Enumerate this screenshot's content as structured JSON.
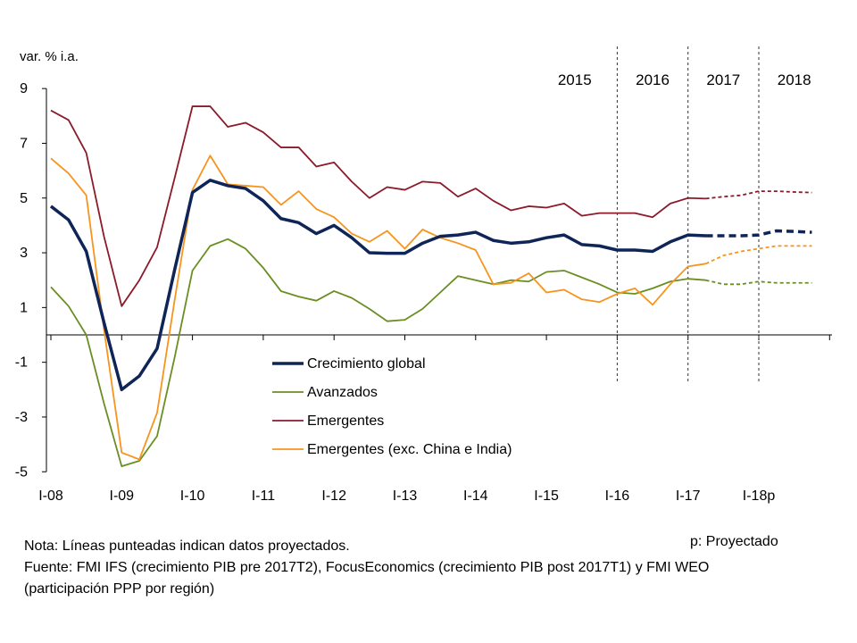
{
  "chart_data": {
    "type": "line",
    "ylabel": "var. % i.a.",
    "ylim": [
      -5,
      9
    ],
    "yticks": [
      9,
      7,
      5,
      3,
      1,
      -1,
      -3,
      -5
    ],
    "x_start": 2008.0,
    "x_step": 0.25,
    "x_ticks": [
      {
        "label": "I-08",
        "year": 2008
      },
      {
        "label": "I-09",
        "year": 2009
      },
      {
        "label": "I-10",
        "year": 2010
      },
      {
        "label": "I-11",
        "year": 2011
      },
      {
        "label": "I-12",
        "year": 2012
      },
      {
        "label": "I-13",
        "year": 2013
      },
      {
        "label": "I-14",
        "year": 2014
      },
      {
        "label": "I-15",
        "year": 2015
      },
      {
        "label": "I-16",
        "year": 2016
      },
      {
        "label": "I-17",
        "year": 2017
      },
      {
        "label": "I-18p",
        "year": 2018
      }
    ],
    "period_labels": [
      {
        "label": "2015",
        "year": 2015.5
      },
      {
        "label": "2016",
        "year": 2016.5
      },
      {
        "label": "2017",
        "year": 2017.5
      },
      {
        "label": "2018",
        "year": 2018.5
      }
    ],
    "dividers": [
      2016.0,
      2017.0,
      2018.0
    ],
    "projection_start_index": 37,
    "series": [
      {
        "name": "Crecimiento global",
        "color": "#0f2557",
        "width": 3.5,
        "values": [
          4.7,
          4.2,
          3.05,
          0.45,
          -2.0,
          -1.5,
          -0.5,
          2.4,
          5.2,
          5.65,
          5.45,
          5.35,
          4.9,
          4.25,
          4.1,
          3.7,
          4.0,
          3.55,
          3.0,
          2.98,
          2.98,
          3.35,
          3.6,
          3.65,
          3.75,
          3.45,
          3.35,
          3.4,
          3.55,
          3.65,
          3.3,
          3.25,
          3.1,
          3.1,
          3.05,
          3.4,
          3.65,
          3.62,
          3.62,
          3.62,
          3.65,
          3.8,
          3.78,
          3.75
        ]
      },
      {
        "name": "Avanzados",
        "color": "#6b8e23",
        "width": 1.8,
        "values": [
          1.75,
          1.05,
          0.0,
          -2.5,
          -4.8,
          -4.6,
          -3.7,
          -0.8,
          2.35,
          3.25,
          3.5,
          3.15,
          2.45,
          1.6,
          1.4,
          1.25,
          1.6,
          1.35,
          0.95,
          0.5,
          0.55,
          0.95,
          1.55,
          2.15,
          2.0,
          1.85,
          2.0,
          1.95,
          2.3,
          2.35,
          2.1,
          1.85,
          1.55,
          1.5,
          1.7,
          1.95,
          2.05,
          2.0,
          1.85,
          1.85,
          1.95,
          1.9,
          1.9,
          1.9
        ]
      },
      {
        "name": "Emergentes",
        "color": "#8b1a2b",
        "width": 1.8,
        "values": [
          8.2,
          7.85,
          6.65,
          3.6,
          1.05,
          2.0,
          3.2,
          5.75,
          8.35,
          8.35,
          7.6,
          7.75,
          7.4,
          6.85,
          6.85,
          6.15,
          6.3,
          5.6,
          5.0,
          5.4,
          5.3,
          5.6,
          5.55,
          5.05,
          5.35,
          4.9,
          4.55,
          4.7,
          4.65,
          4.8,
          4.35,
          4.45,
          4.45,
          4.45,
          4.3,
          4.8,
          5.0,
          4.98,
          5.05,
          5.1,
          5.25,
          5.25,
          5.22,
          5.2
        ]
      },
      {
        "name": "Emergentes (exc. China e India)",
        "color": "#f7941d",
        "width": 1.8,
        "values": [
          6.45,
          5.9,
          5.1,
          0.2,
          -4.3,
          -4.55,
          -2.85,
          1.3,
          5.3,
          6.55,
          5.5,
          5.45,
          5.4,
          4.75,
          5.25,
          4.6,
          4.3,
          3.7,
          3.4,
          3.8,
          3.15,
          3.85,
          3.55,
          3.35,
          3.1,
          1.85,
          1.9,
          2.25,
          1.55,
          1.65,
          1.3,
          1.2,
          1.5,
          1.7,
          1.1,
          1.85,
          2.5,
          2.6,
          2.9,
          3.05,
          3.15,
          3.25,
          3.25,
          3.25
        ]
      }
    ],
    "legend_position": "center-left, below x-axis line"
  },
  "notes": {
    "line1": "Nota: Líneas punteadas indican datos proyectados.",
    "line2": "Fuente: FMI IFS (crecimiento PIB pre 2017T2), FocusEconomics (crecimiento PIB post 2017T1) y FMI WEO",
    "line3": "(participación PPP por región)",
    "projection": "p: Proyectado"
  }
}
